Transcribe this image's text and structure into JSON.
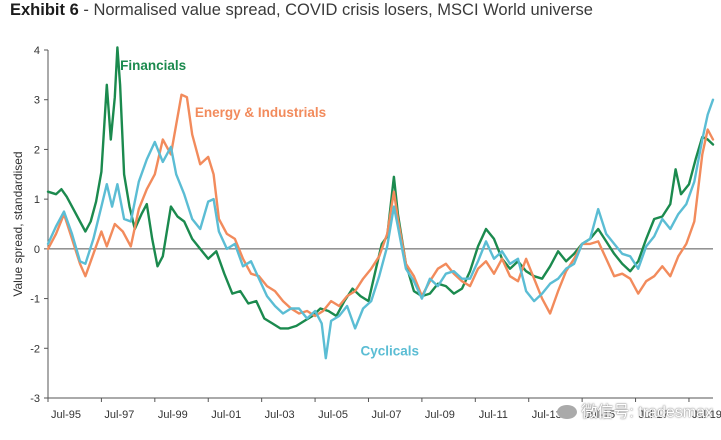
{
  "header": {
    "lead": "Exhibit 6",
    "separator": " - ",
    "title": "Normalised value spread, COVID crisis losers, MSCI World universe"
  },
  "watermark": "微信号: tradesmax",
  "chart_data": {
    "type": "line",
    "title": "Normalised value spread, COVID crisis losers, MSCI World universe",
    "ylabel": "Value spread, standardised",
    "xlabel": "",
    "xlim": [
      1995.5,
      2020.4
    ],
    "ylim": [
      -3,
      4
    ],
    "yticks": [
      -3,
      -2,
      -1,
      0,
      1,
      2,
      3,
      4
    ],
    "xticks": [
      {
        "x": 1995.5,
        "label": "Jul-95"
      },
      {
        "x": 1997.5,
        "label": "Jul-97"
      },
      {
        "x": 1999.5,
        "label": "Jul-99"
      },
      {
        "x": 2001.5,
        "label": "Jul-01"
      },
      {
        "x": 2003.5,
        "label": "Jul-03"
      },
      {
        "x": 2005.5,
        "label": "Jul-05"
      },
      {
        "x": 2007.5,
        "label": "Jul-07"
      },
      {
        "x": 2009.5,
        "label": "Jul-09"
      },
      {
        "x": 2011.5,
        "label": "Jul-11"
      },
      {
        "x": 2013.5,
        "label": "Jul-13"
      },
      {
        "x": 2015.5,
        "label": "Jul-15"
      },
      {
        "x": 2017.5,
        "label": "Jul-17"
      },
      {
        "x": 2019.5,
        "label": "Jul-19"
      }
    ],
    "grid": false,
    "series": [
      {
        "name": "Financials",
        "color": "#1b8a4e",
        "label_at": [
          1998.2,
          3.6
        ],
        "points": [
          [
            1995.5,
            1.15
          ],
          [
            1995.8,
            1.1
          ],
          [
            1996.0,
            1.2
          ],
          [
            1996.2,
            1.05
          ],
          [
            1996.5,
            0.75
          ],
          [
            1996.7,
            0.55
          ],
          [
            1996.9,
            0.35
          ],
          [
            1997.1,
            0.55
          ],
          [
            1997.3,
            0.95
          ],
          [
            1997.5,
            1.55
          ],
          [
            1997.7,
            3.3
          ],
          [
            1997.85,
            2.2
          ],
          [
            1998.0,
            3.05
          ],
          [
            1998.1,
            4.05
          ],
          [
            1998.2,
            3.3
          ],
          [
            1998.35,
            1.5
          ],
          [
            1998.55,
            0.85
          ],
          [
            1998.75,
            0.4
          ],
          [
            1999.0,
            0.7
          ],
          [
            1999.2,
            0.9
          ],
          [
            1999.4,
            0.2
          ],
          [
            1999.6,
            -0.35
          ],
          [
            1999.8,
            -0.15
          ],
          [
            2000.1,
            0.85
          ],
          [
            2000.35,
            0.65
          ],
          [
            2000.6,
            0.55
          ],
          [
            2000.9,
            0.2
          ],
          [
            2001.2,
            0.0
          ],
          [
            2001.5,
            -0.2
          ],
          [
            2001.8,
            -0.05
          ],
          [
            2002.1,
            -0.5
          ],
          [
            2002.4,
            -0.9
          ],
          [
            2002.7,
            -0.85
          ],
          [
            2003.0,
            -1.1
          ],
          [
            2003.3,
            -1.05
          ],
          [
            2003.6,
            -1.4
          ],
          [
            2003.9,
            -1.5
          ],
          [
            2004.2,
            -1.6
          ],
          [
            2004.5,
            -1.6
          ],
          [
            2004.8,
            -1.55
          ],
          [
            2005.1,
            -1.45
          ],
          [
            2005.4,
            -1.35
          ],
          [
            2005.7,
            -1.2
          ],
          [
            2006.0,
            -1.25
          ],
          [
            2006.3,
            -1.35
          ],
          [
            2006.6,
            -1.05
          ],
          [
            2006.9,
            -0.8
          ],
          [
            2007.2,
            -0.95
          ],
          [
            2007.5,
            -1.05
          ],
          [
            2007.8,
            -0.35
          ],
          [
            2008.0,
            0.1
          ],
          [
            2008.2,
            0.25
          ],
          [
            2008.45,
            1.45
          ],
          [
            2008.6,
            0.7
          ],
          [
            2008.9,
            -0.3
          ],
          [
            2009.2,
            -0.85
          ],
          [
            2009.5,
            -0.95
          ],
          [
            2009.8,
            -0.9
          ],
          [
            2010.1,
            -0.7
          ],
          [
            2010.4,
            -0.75
          ],
          [
            2010.7,
            -0.9
          ],
          [
            2011.0,
            -0.8
          ],
          [
            2011.3,
            -0.45
          ],
          [
            2011.6,
            0.05
          ],
          [
            2011.9,
            0.4
          ],
          [
            2012.2,
            0.2
          ],
          [
            2012.5,
            -0.2
          ],
          [
            2012.8,
            -0.4
          ],
          [
            2013.1,
            -0.25
          ],
          [
            2013.4,
            -0.45
          ],
          [
            2013.7,
            -0.55
          ],
          [
            2014.0,
            -0.6
          ],
          [
            2014.3,
            -0.35
          ],
          [
            2014.6,
            -0.05
          ],
          [
            2014.9,
            -0.25
          ],
          [
            2015.2,
            -0.1
          ],
          [
            2015.5,
            0.1
          ],
          [
            2015.8,
            0.2
          ],
          [
            2016.1,
            0.4
          ],
          [
            2016.4,
            0.15
          ],
          [
            2016.7,
            -0.1
          ],
          [
            2017.0,
            -0.3
          ],
          [
            2017.3,
            -0.45
          ],
          [
            2017.6,
            -0.25
          ],
          [
            2017.9,
            0.2
          ],
          [
            2018.2,
            0.6
          ],
          [
            2018.5,
            0.65
          ],
          [
            2018.8,
            0.9
          ],
          [
            2019.0,
            1.6
          ],
          [
            2019.2,
            1.1
          ],
          [
            2019.5,
            1.3
          ],
          [
            2019.75,
            1.8
          ],
          [
            2020.0,
            2.25
          ],
          [
            2020.2,
            2.2
          ],
          [
            2020.4,
            2.1
          ]
        ]
      },
      {
        "name": "Energy & Industrials",
        "color": "#f28b5c",
        "label_at": [
          2001.0,
          2.65
        ],
        "points": [
          [
            1995.5,
            0.0
          ],
          [
            1995.8,
            0.3
          ],
          [
            1996.1,
            0.7
          ],
          [
            1996.4,
            0.2
          ],
          [
            1996.7,
            -0.3
          ],
          [
            1996.9,
            -0.55
          ],
          [
            1997.2,
            -0.1
          ],
          [
            1997.5,
            0.35
          ],
          [
            1997.7,
            0.05
          ],
          [
            1998.0,
            0.5
          ],
          [
            1998.3,
            0.35
          ],
          [
            1998.6,
            0.05
          ],
          [
            1998.9,
            0.8
          ],
          [
            1999.2,
            1.2
          ],
          [
            1999.5,
            1.5
          ],
          [
            1999.8,
            2.2
          ],
          [
            2000.1,
            1.9
          ],
          [
            2000.3,
            2.5
          ],
          [
            2000.5,
            3.1
          ],
          [
            2000.7,
            3.05
          ],
          [
            2000.9,
            2.3
          ],
          [
            2001.2,
            1.7
          ],
          [
            2001.5,
            1.85
          ],
          [
            2001.7,
            1.5
          ],
          [
            2001.9,
            0.6
          ],
          [
            2002.2,
            0.3
          ],
          [
            2002.5,
            0.2
          ],
          [
            2002.8,
            -0.2
          ],
          [
            2003.1,
            -0.5
          ],
          [
            2003.4,
            -0.55
          ],
          [
            2003.7,
            -0.75
          ],
          [
            2004.0,
            -0.85
          ],
          [
            2004.3,
            -1.05
          ],
          [
            2004.6,
            -1.2
          ],
          [
            2004.9,
            -1.3
          ],
          [
            2005.2,
            -1.25
          ],
          [
            2005.5,
            -1.35
          ],
          [
            2005.8,
            -1.25
          ],
          [
            2006.1,
            -1.05
          ],
          [
            2006.4,
            -1.15
          ],
          [
            2006.7,
            -0.95
          ],
          [
            2007.0,
            -0.85
          ],
          [
            2007.3,
            -0.6
          ],
          [
            2007.6,
            -0.4
          ],
          [
            2007.9,
            -0.15
          ],
          [
            2008.2,
            0.3
          ],
          [
            2008.45,
            1.15
          ],
          [
            2008.6,
            0.6
          ],
          [
            2008.9,
            -0.3
          ],
          [
            2009.2,
            -0.55
          ],
          [
            2009.5,
            -0.95
          ],
          [
            2009.8,
            -0.65
          ],
          [
            2010.1,
            -0.4
          ],
          [
            2010.4,
            -0.3
          ],
          [
            2010.7,
            -0.5
          ],
          [
            2011.0,
            -0.65
          ],
          [
            2011.3,
            -0.75
          ],
          [
            2011.6,
            -0.4
          ],
          [
            2011.9,
            -0.25
          ],
          [
            2012.2,
            -0.5
          ],
          [
            2012.5,
            -0.2
          ],
          [
            2012.8,
            -0.55
          ],
          [
            2013.1,
            -0.65
          ],
          [
            2013.4,
            -0.2
          ],
          [
            2013.7,
            -0.6
          ],
          [
            2014.0,
            -1.0
          ],
          [
            2014.3,
            -1.3
          ],
          [
            2014.6,
            -0.85
          ],
          [
            2014.9,
            -0.45
          ],
          [
            2015.2,
            -0.2
          ],
          [
            2015.5,
            0.1
          ],
          [
            2015.8,
            0.1
          ],
          [
            2016.1,
            0.15
          ],
          [
            2016.4,
            -0.2
          ],
          [
            2016.7,
            -0.55
          ],
          [
            2017.0,
            -0.5
          ],
          [
            2017.3,
            -0.6
          ],
          [
            2017.6,
            -0.9
          ],
          [
            2017.9,
            -0.65
          ],
          [
            2018.2,
            -0.55
          ],
          [
            2018.5,
            -0.35
          ],
          [
            2018.8,
            -0.55
          ],
          [
            2019.1,
            -0.15
          ],
          [
            2019.4,
            0.1
          ],
          [
            2019.7,
            0.55
          ],
          [
            2020.0,
            1.9
          ],
          [
            2020.2,
            2.4
          ],
          [
            2020.4,
            2.2
          ]
        ]
      },
      {
        "name": "Cyclicals",
        "color": "#5bbdd4",
        "label_at": [
          2007.2,
          -2.15
        ],
        "points": [
          [
            1995.5,
            0.1
          ],
          [
            1995.8,
            0.45
          ],
          [
            1996.1,
            0.75
          ],
          [
            1996.4,
            0.3
          ],
          [
            1996.7,
            -0.25
          ],
          [
            1996.9,
            -0.3
          ],
          [
            1997.2,
            0.2
          ],
          [
            1997.5,
            0.85
          ],
          [
            1997.7,
            1.3
          ],
          [
            1997.9,
            0.85
          ],
          [
            1998.1,
            1.3
          ],
          [
            1998.35,
            0.6
          ],
          [
            1998.6,
            0.55
          ],
          [
            1998.9,
            1.35
          ],
          [
            1999.2,
            1.8
          ],
          [
            1999.5,
            2.15
          ],
          [
            1999.8,
            1.75
          ],
          [
            2000.1,
            2.05
          ],
          [
            2000.3,
            1.5
          ],
          [
            2000.6,
            1.1
          ],
          [
            2000.9,
            0.6
          ],
          [
            2001.2,
            0.4
          ],
          [
            2001.5,
            0.95
          ],
          [
            2001.7,
            1.0
          ],
          [
            2001.9,
            0.35
          ],
          [
            2002.2,
            0.0
          ],
          [
            2002.5,
            0.1
          ],
          [
            2002.8,
            -0.35
          ],
          [
            2003.1,
            -0.25
          ],
          [
            2003.4,
            -0.6
          ],
          [
            2003.7,
            -0.95
          ],
          [
            2004.0,
            -1.15
          ],
          [
            2004.3,
            -1.3
          ],
          [
            2004.6,
            -1.2
          ],
          [
            2004.9,
            -1.2
          ],
          [
            2005.2,
            -1.4
          ],
          [
            2005.5,
            -1.25
          ],
          [
            2005.75,
            -1.5
          ],
          [
            2005.9,
            -2.2
          ],
          [
            2006.1,
            -1.45
          ],
          [
            2006.4,
            -1.35
          ],
          [
            2006.7,
            -1.15
          ],
          [
            2007.0,
            -1.6
          ],
          [
            2007.3,
            -1.2
          ],
          [
            2007.6,
            -1.05
          ],
          [
            2007.9,
            -0.55
          ],
          [
            2008.2,
            0.05
          ],
          [
            2008.45,
            0.85
          ],
          [
            2008.6,
            0.45
          ],
          [
            2008.9,
            -0.4
          ],
          [
            2009.2,
            -0.65
          ],
          [
            2009.5,
            -1.0
          ],
          [
            2009.8,
            -0.6
          ],
          [
            2010.1,
            -0.75
          ],
          [
            2010.4,
            -0.5
          ],
          [
            2010.7,
            -0.45
          ],
          [
            2011.0,
            -0.6
          ],
          [
            2011.3,
            -0.6
          ],
          [
            2011.6,
            -0.25
          ],
          [
            2011.9,
            0.15
          ],
          [
            2012.2,
            -0.2
          ],
          [
            2012.5,
            -0.05
          ],
          [
            2012.8,
            -0.3
          ],
          [
            2013.1,
            -0.2
          ],
          [
            2013.4,
            -0.85
          ],
          [
            2013.7,
            -1.05
          ],
          [
            2014.0,
            -0.9
          ],
          [
            2014.3,
            -0.7
          ],
          [
            2014.6,
            -0.6
          ],
          [
            2014.9,
            -0.4
          ],
          [
            2015.2,
            -0.3
          ],
          [
            2015.5,
            0.1
          ],
          [
            2015.8,
            0.2
          ],
          [
            2016.1,
            0.8
          ],
          [
            2016.4,
            0.3
          ],
          [
            2016.7,
            0.1
          ],
          [
            2017.0,
            -0.1
          ],
          [
            2017.3,
            -0.15
          ],
          [
            2017.6,
            -0.4
          ],
          [
            2017.9,
            0.05
          ],
          [
            2018.2,
            0.25
          ],
          [
            2018.5,
            0.6
          ],
          [
            2018.8,
            0.4
          ],
          [
            2019.1,
            0.7
          ],
          [
            2019.4,
            0.9
          ],
          [
            2019.7,
            1.35
          ],
          [
            2020.0,
            2.2
          ],
          [
            2020.2,
            2.7
          ],
          [
            2020.4,
            3.0
          ]
        ]
      }
    ]
  }
}
